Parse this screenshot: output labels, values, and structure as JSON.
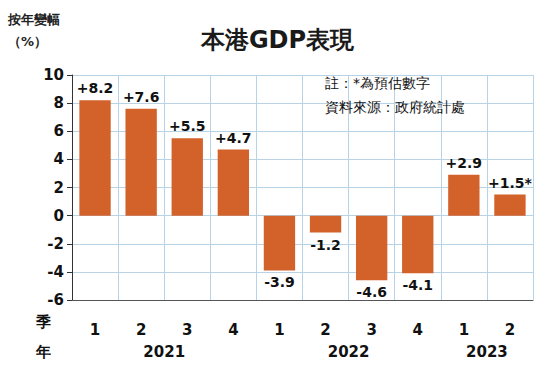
{
  "chart_data": {
    "type": "bar",
    "title": "本港GDP表現",
    "ylabel": "按年變幅\n（%）",
    "notes": [
      "註：*為預估數字",
      "資料來源：政府統計處"
    ],
    "xlabel": "季",
    "group_label": "年",
    "categories": [
      "1",
      "2",
      "3",
      "4",
      "1",
      "2",
      "3",
      "4",
      "1",
      "2"
    ],
    "groups": [
      "2021",
      "2021",
      "2021",
      "2021",
      "2022",
      "2022",
      "2022",
      "2022",
      "2023",
      "2023"
    ],
    "values": [
      8.2,
      7.6,
      5.5,
      4.7,
      -3.9,
      -1.2,
      -4.6,
      -4.1,
      2.9,
      1.5
    ],
    "value_labels": [
      "+8.2",
      "+7.6",
      "+5.5",
      "+4.7",
      "-3.9",
      "-1.2",
      "-4.6",
      "-4.1",
      "+2.9",
      "+1.5*"
    ],
    "color": "#d2622a",
    "ylim": [
      -6,
      10
    ],
    "yticks": [
      -6,
      -4,
      -2,
      0,
      2,
      4,
      6,
      8,
      10
    ],
    "grid": true,
    "data_labels": true
  }
}
